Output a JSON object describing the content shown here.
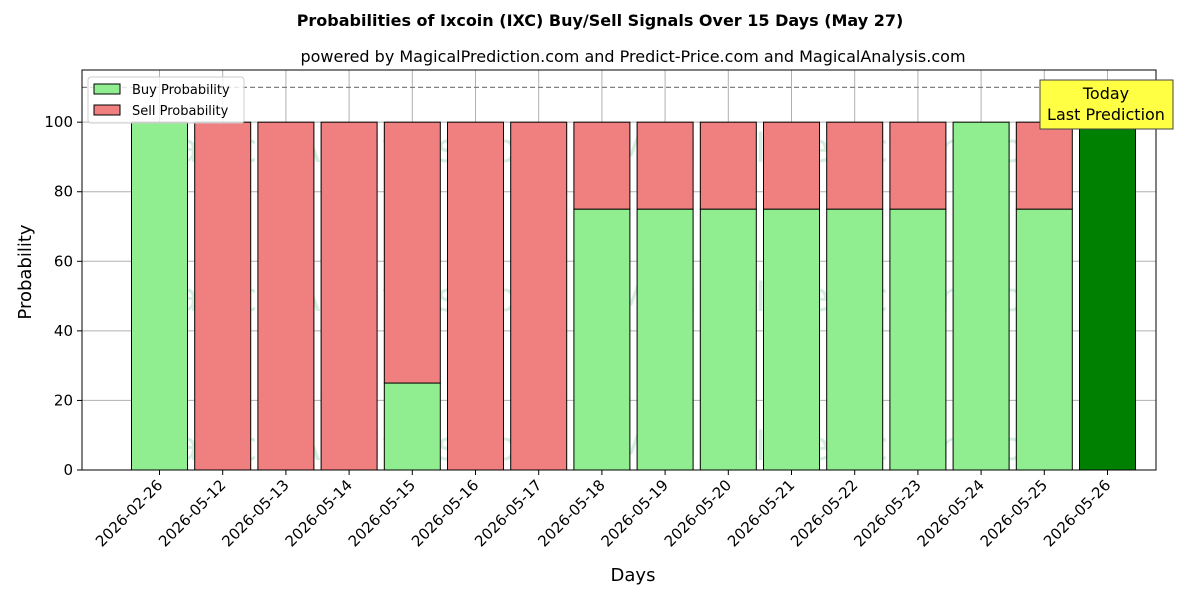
{
  "title": "Probabilities of Ixcoin (IXC) Buy/Sell Signals Over 15 Days (May 27)",
  "subtitle": "powered by MagicalPrediction.com and Predict-Price.com and MagicalAnalysis.com",
  "watermarks": [
    "MagicalAnalysis.com",
    "MagicalPrediction.com"
  ],
  "annotation": {
    "line1": "Today",
    "line2": "Last Prediction"
  },
  "colors": {
    "buy": "#90ee90",
    "sell": "#f08080",
    "today": "#008000",
    "annotation_bg": "#ffff44",
    "reference_line": "#808080",
    "grid": "#b0b0b0"
  },
  "chart_data": {
    "type": "bar",
    "stacked": true,
    "xlabel": "Days",
    "ylabel": "Probability",
    "ylim": [
      0,
      115
    ],
    "yticks": [
      0,
      20,
      40,
      60,
      80,
      100
    ],
    "reference_line": 110,
    "grid": true,
    "legend_position": "top-left",
    "categories": [
      "2026-02-26",
      "2026-05-12",
      "2026-05-13",
      "2026-05-14",
      "2026-05-15",
      "2026-05-16",
      "2026-05-17",
      "2026-05-18",
      "2026-05-19",
      "2026-05-20",
      "2026-05-21",
      "2026-05-22",
      "2026-05-23",
      "2026-05-24",
      "2026-05-25",
      "2026-05-26"
    ],
    "series": [
      {
        "name": "Buy Probability",
        "values": [
          100,
          0,
          0,
          0,
          25,
          0,
          0,
          75,
          75,
          75,
          75,
          75,
          75,
          100,
          75,
          100
        ]
      },
      {
        "name": "Sell Probability",
        "values": [
          0,
          100,
          100,
          100,
          75,
          100,
          100,
          25,
          25,
          25,
          25,
          25,
          25,
          0,
          25,
          0
        ]
      }
    ]
  }
}
